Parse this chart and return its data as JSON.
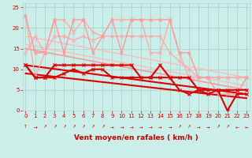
{
  "xlabel": "Vent moyen/en rafales ( km/h )",
  "bg_color": "#cceee8",
  "grid_color": "#aad8d0",
  "x": [
    0,
    1,
    2,
    3,
    4,
    5,
    6,
    7,
    8,
    9,
    10,
    11,
    12,
    13,
    14,
    15,
    16,
    17,
    18,
    19,
    20,
    21,
    22,
    23
  ],
  "series": [
    {
      "y": [
        23,
        8,
        14,
        22,
        22,
        19,
        22,
        19,
        18,
        22,
        22,
        22,
        22,
        14,
        14,
        22,
        14,
        8,
        8,
        8,
        8,
        8,
        8,
        8
      ],
      "color": "#ffaaaa",
      "lw": 1.0,
      "marker": "x",
      "ms": 3,
      "zorder": 3
    },
    {
      "y": [
        14,
        18,
        14,
        18,
        18,
        17,
        18,
        17,
        18,
        18,
        18,
        18,
        18,
        18,
        18,
        14,
        12,
        10,
        8,
        8,
        8,
        8,
        8,
        8
      ],
      "color": "#ffaaaa",
      "lw": 1.0,
      "marker": "x",
      "ms": 3,
      "zorder": 3
    },
    {
      "y": [
        23,
        14,
        14,
        22,
        14,
        22,
        22,
        14,
        18,
        22,
        14,
        22,
        22,
        22,
        22,
        22,
        14,
        14,
        8,
        8,
        4,
        4,
        4,
        8
      ],
      "color": "#ff9999",
      "lw": 1.0,
      "marker": "x",
      "ms": 3,
      "zorder": 3
    },
    {
      "y": [
        11,
        8,
        8,
        11,
        11,
        11,
        11,
        11,
        11,
        11,
        11,
        11,
        8,
        8,
        8,
        8,
        5,
        4,
        5,
        4,
        5,
        0,
        4,
        4
      ],
      "color": "#dd0000",
      "lw": 1.5,
      "marker": "x",
      "ms": 3,
      "zorder": 4
    },
    {
      "y": [
        11,
        8,
        8,
        8,
        9,
        10,
        9,
        10,
        10,
        8,
        8,
        8,
        8,
        8,
        11,
        8,
        8,
        8,
        5,
        5,
        5,
        5,
        5,
        5
      ],
      "color": "#dd0000",
      "lw": 1.5,
      "marker": "x",
      "ms": 3,
      "zorder": 4
    }
  ],
  "trend_lines": [
    {
      "x0": 0,
      "y0": 18,
      "x1": 23,
      "y1": 8,
      "color": "#ffbbbb",
      "lw": 1.0
    },
    {
      "x0": 0,
      "y0": 16,
      "x1": 23,
      "y1": 6,
      "color": "#ffbbbb",
      "lw": 1.0
    },
    {
      "x0": 0,
      "y0": 15,
      "x1": 23,
      "y1": 5,
      "color": "#ff9999",
      "lw": 1.2
    },
    {
      "x0": 0,
      "y0": 11,
      "x1": 23,
      "y1": 4,
      "color": "#dd0000",
      "lw": 1.5
    },
    {
      "x0": 0,
      "y0": 9,
      "x1": 23,
      "y1": 3,
      "color": "#dd0000",
      "lw": 1.5
    }
  ],
  "ylim": [
    0,
    26
  ],
  "yticks": [
    0,
    5,
    10,
    15,
    20,
    25
  ],
  "xlim": [
    -0.3,
    23.3
  ],
  "xticks": [
    0,
    1,
    2,
    3,
    4,
    5,
    6,
    7,
    8,
    9,
    10,
    11,
    12,
    13,
    14,
    15,
    16,
    17,
    18,
    19,
    20,
    21,
    22,
    23
  ],
  "label_color": "#cc0000",
  "tick_fontsize": 5,
  "xlabel_fontsize": 6.5,
  "arrows": [
    "↑",
    "→",
    "↗",
    "↗",
    "↗",
    "↗",
    "↗",
    "↗",
    "↗",
    "→",
    "→",
    "→",
    "→",
    "→",
    "→",
    "→",
    "↗",
    "↗",
    "→",
    "→",
    "↗",
    "↗",
    "←",
    "←"
  ]
}
